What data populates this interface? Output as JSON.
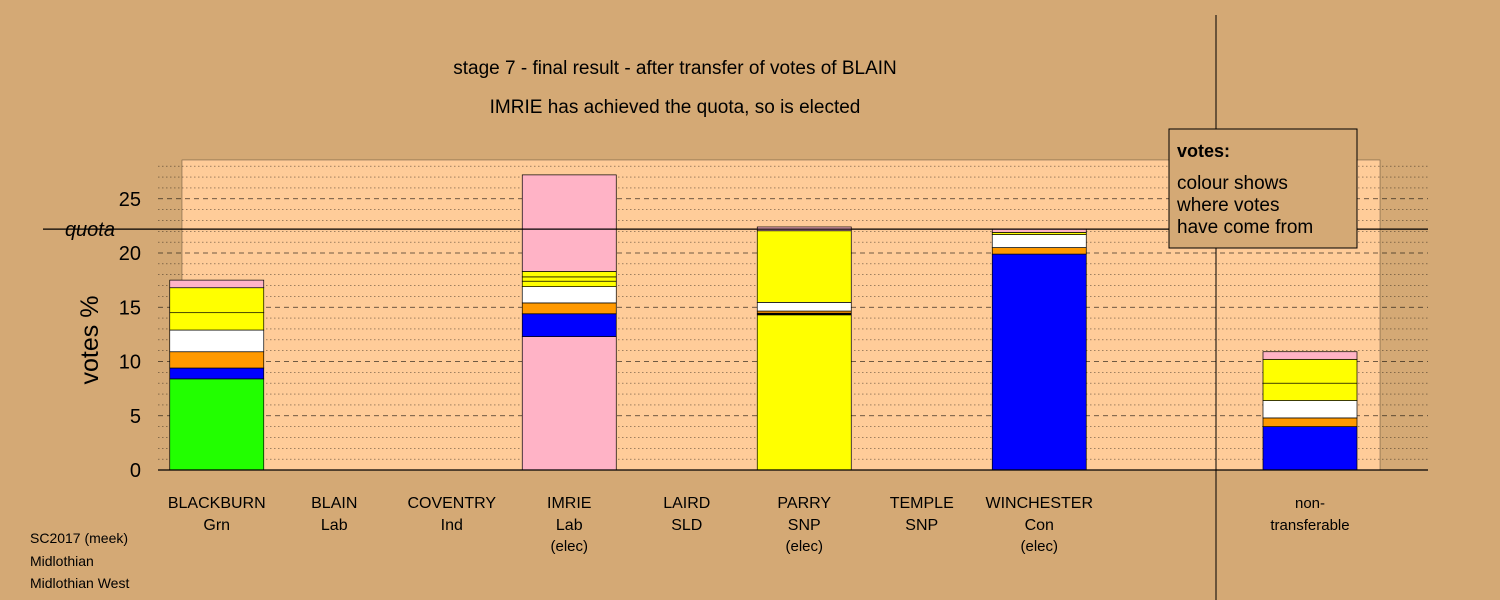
{
  "chart_data": {
    "type": "bar",
    "stacked": true,
    "title": "stage 7 - final result - after transfer of votes of BLAIN",
    "subtitle": "IMRIE has achieved the quota, so is elected",
    "ylabel": "votes %",
    "ylim": [
      0,
      28.7
    ],
    "yticks": [
      0,
      5,
      10,
      15,
      20,
      25
    ],
    "quota": 22.2,
    "quota_label": "quota",
    "grid": true,
    "legend": {
      "placement": "top-right",
      "title": "votes:",
      "lines": [
        "colour shows",
        "where votes",
        "have come from"
      ]
    },
    "categories": [
      {
        "name": "BLACKBURN",
        "party": "Grn",
        "note": "",
        "segments": [
          {
            "color": "#22ff00",
            "value": 8.4
          },
          {
            "color": "#0000ff",
            "value": 1.0
          },
          {
            "color": "#ff9900",
            "value": 1.5
          },
          {
            "color": "#ffffff",
            "value": 2.0
          },
          {
            "color": "#ffff00",
            "value": 1.6
          },
          {
            "color": "#ffff00",
            "value": 2.3
          },
          {
            "color": "#ffb3c6",
            "value": 0.7
          }
        ]
      },
      {
        "name": "BLAIN",
        "party": "Lab",
        "note": "",
        "segments": []
      },
      {
        "name": "COVENTRY",
        "party": "Ind",
        "note": "",
        "segments": []
      },
      {
        "name": "IMRIE",
        "party": "Lab",
        "note": "(elec)",
        "segments": [
          {
            "color": "#ffb3c6",
            "value": 12.3
          },
          {
            "color": "#0000ff",
            "value": 2.1
          },
          {
            "color": "#ff9900",
            "value": 1.0
          },
          {
            "color": "#ffffff",
            "value": 1.5
          },
          {
            "color": "#ffff00",
            "value": 0.5
          },
          {
            "color": "#ffff00",
            "value": 0.4
          },
          {
            "color": "#ffff00",
            "value": 0.5
          },
          {
            "color": "#ffb3c6",
            "value": 8.9
          }
        ]
      },
      {
        "name": "LAIRD",
        "party": "SLD",
        "note": "",
        "segments": []
      },
      {
        "name": "PARRY",
        "party": "SNP",
        "note": "(elec)",
        "segments": [
          {
            "color": "#ffff00",
            "value": 14.3
          },
          {
            "color": "#000000",
            "value": 0.15
          },
          {
            "color": "#ff9900",
            "value": 0.2
          },
          {
            "color": "#ffffff",
            "value": 0.8
          },
          {
            "color": "#ffff00",
            "value": 6.6
          },
          {
            "color": "#ffb3c6",
            "value": 0.35
          }
        ]
      },
      {
        "name": "TEMPLE",
        "party": "SNP",
        "note": "",
        "segments": []
      },
      {
        "name": "WINCHESTER",
        "party": "Con",
        "note": "(elec)",
        "segments": [
          {
            "color": "#0000ff",
            "value": 19.9
          },
          {
            "color": "#ff9900",
            "value": 0.6
          },
          {
            "color": "#ffffff",
            "value": 1.2
          },
          {
            "color": "#ffff00",
            "value": 0.2
          },
          {
            "color": "#ffb3c6",
            "value": 0.3
          }
        ]
      }
    ],
    "nontransferable": {
      "label_lines": [
        "non-",
        "transferable"
      ],
      "segments": [
        {
          "color": "#0000ff",
          "value": 4.0
        },
        {
          "color": "#ff9900",
          "value": 0.8
        },
        {
          "color": "#ffffff",
          "value": 1.6
        },
        {
          "color": "#ffff00",
          "value": 1.6
        },
        {
          "color": "#ffff00",
          "value": 2.2
        },
        {
          "color": "#ffb3c6",
          "value": 0.7
        }
      ]
    }
  },
  "footer": {
    "lines": [
      "SC2017 (meek)",
      "Midlothian",
      "Midlothian West"
    ]
  },
  "colors": {
    "background": "#d4a975",
    "plot_area": "#ffcc99"
  }
}
